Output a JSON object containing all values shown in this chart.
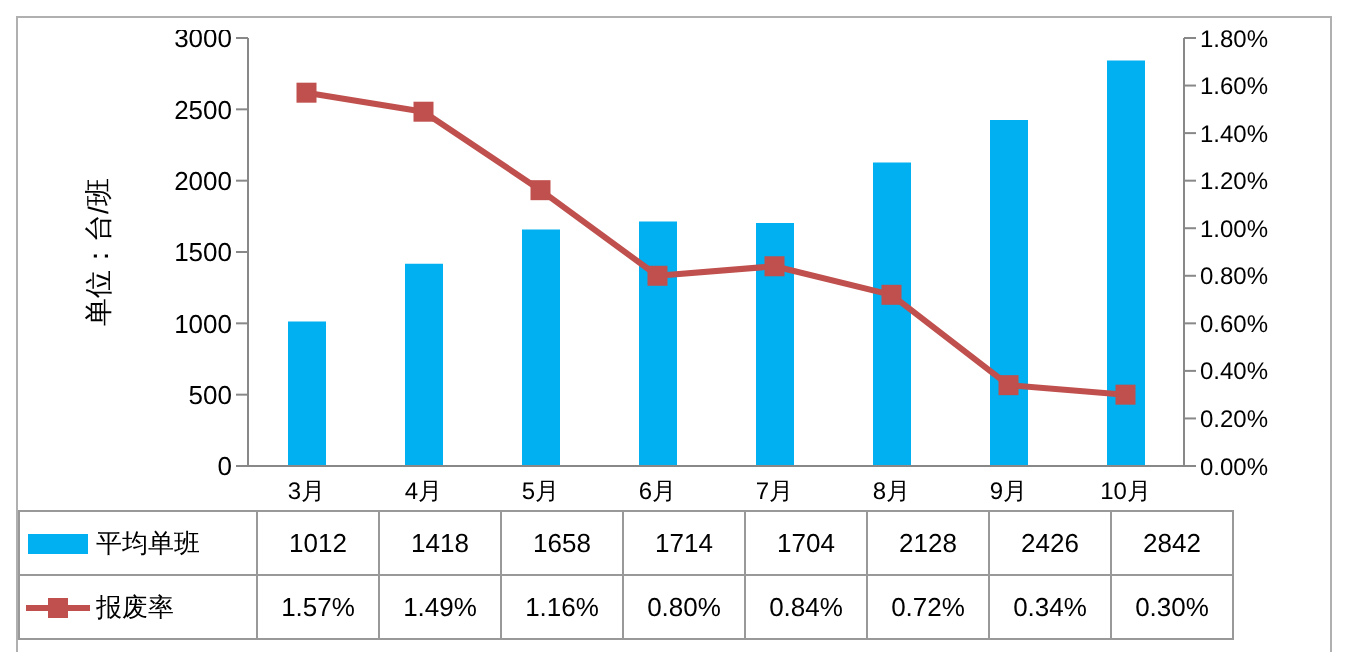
{
  "chart_data": {
    "type": "bar",
    "ylabel": "单位：台/班",
    "categories": [
      "3月",
      "4月",
      "5月",
      "6月",
      "7月",
      "8月",
      "9月",
      "10月"
    ],
    "series": [
      {
        "name": "平均单班",
        "color": "#00b0f0",
        "values": [
          1012,
          1418,
          1658,
          1714,
          1704,
          2128,
          2426,
          2842
        ],
        "value_labels": [
          "1012",
          "1418",
          "1658",
          "1714",
          "1704",
          "2128",
          "2426",
          "2842"
        ]
      },
      {
        "name": "报废率",
        "type": "line",
        "axis": "y2",
        "color": "#c0504d",
        "marker": "square",
        "values": [
          1.57,
          1.49,
          1.16,
          0.8,
          0.84,
          0.72,
          0.34,
          0.3
        ],
        "value_labels": [
          "1.57%",
          "1.49%",
          "1.16%",
          "0.80%",
          "0.84%",
          "0.72%",
          "0.34%",
          "0.30%"
        ]
      }
    ],
    "ylim": [
      0,
      3000
    ],
    "yticks": [
      0,
      500,
      1000,
      1500,
      2000,
      2500,
      3000
    ],
    "y2lim": [
      0,
      1.8
    ],
    "y2ticks": [
      {
        "value": 0,
        "label": "0.00%"
      },
      {
        "value": 0.2,
        "label": "0.20%"
      },
      {
        "value": 0.4,
        "label": "0.40%"
      },
      {
        "value": 0.6,
        "label": "0.60%"
      },
      {
        "value": 0.8,
        "label": "0.80%"
      },
      {
        "value": 1,
        "label": "1.00%"
      },
      {
        "value": 1.2,
        "label": "1.20%"
      },
      {
        "value": 1.4,
        "label": "1.40%"
      },
      {
        "value": 1.6,
        "label": "1.60%"
      },
      {
        "value": 1.8,
        "label": "1.80%"
      }
    ],
    "legend": "bottom",
    "grid": false
  }
}
